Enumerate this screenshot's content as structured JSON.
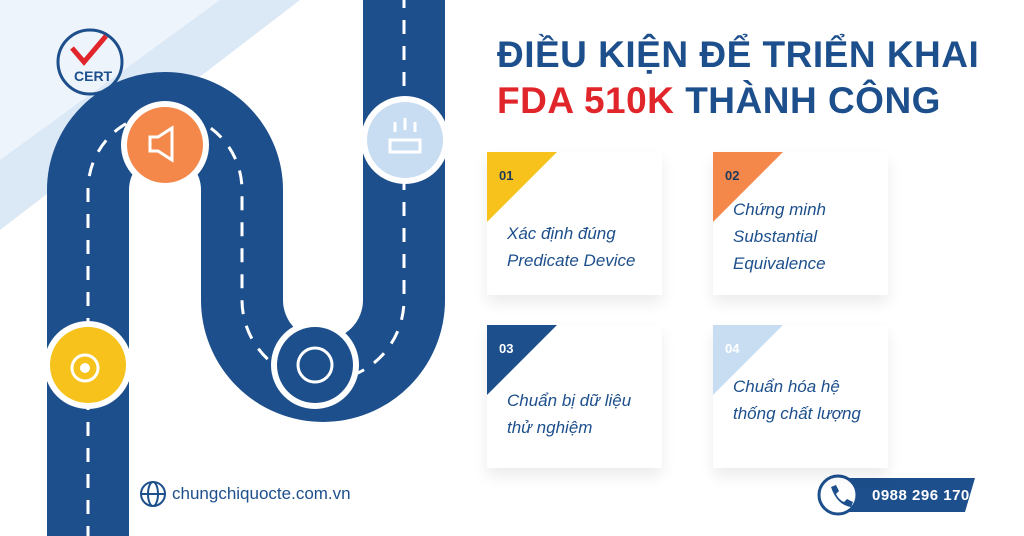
{
  "logo": {
    "text": "CERT"
  },
  "title": {
    "line1": "ĐIỀU KIỆN ĐỂ TRIỂN KHAI",
    "line2_highlight": "FDA 510K",
    "line2_rest": "THÀNH CÔNG"
  },
  "cards": [
    {
      "number": "01",
      "lines": [
        "Xác định đúng",
        "Predicate Device"
      ]
    },
    {
      "number": "02",
      "lines": [
        "Chứng minh",
        "Substantial",
        "Equivalence"
      ]
    },
    {
      "number": "03",
      "lines": [
        "Chuẩn bị dữ liệu",
        "thử nghiệm"
      ]
    },
    {
      "number": "04",
      "lines": [
        "Chuẩn hóa hệ",
        "thống chất lượng"
      ]
    }
  ],
  "footer": {
    "website": "chungchiquocte.com.vn",
    "phone": "0988 296 170"
  }
}
